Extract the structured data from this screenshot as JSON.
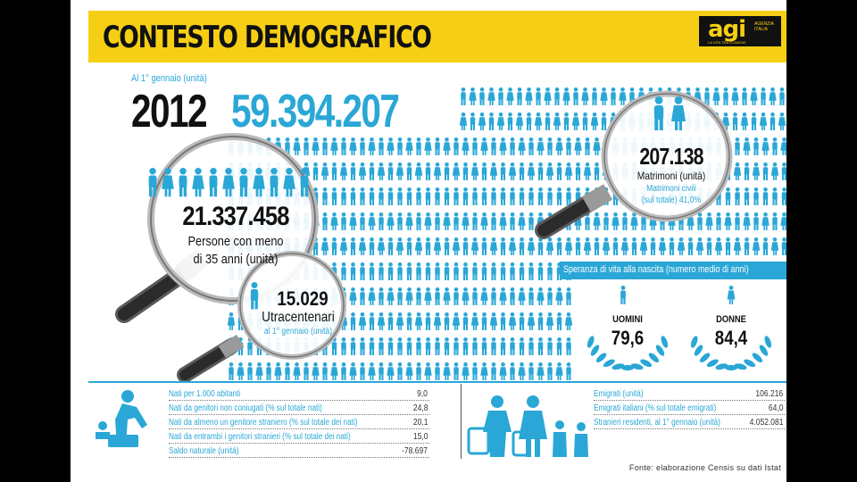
{
  "header": {
    "title": "CONTESTO DEMOGRAFICO",
    "logo": {
      "name": "agi",
      "tagline": "AGENZIA ITALIA",
      "subtag": "LA VITA TRA CI ANCHE"
    }
  },
  "population": {
    "date_label": "Al 1° gennaio (unità)",
    "year": "2012",
    "value": "59.394.207"
  },
  "under35": {
    "value": "21.337.458",
    "label_line1": "Persone con meno",
    "label_line2": "di 35 anni (unità)"
  },
  "centenarians": {
    "value": "15.029",
    "label": "Utracentenari",
    "sublabel": "al 1° gennaio (unità)"
  },
  "marriages": {
    "value": "207.138",
    "label": "Matrimoni (unità)",
    "civil_label": "Matrimoni civili",
    "civil_value": "(sul totale) 41,0%"
  },
  "life_expectancy": {
    "title": "Speranza di vita alla nascita (numero medio di anni)",
    "men_label": "UOMINI",
    "men_value": "79,6",
    "women_label": "DONNE",
    "women_value": "84,4"
  },
  "births_table": [
    {
      "label": "Nati per 1.000 abitanti",
      "value": "9,0"
    },
    {
      "label": "Nati da genitori non coniugati (% sul totale nati)",
      "value": "24,8"
    },
    {
      "label": "Nati da almeno un genitore straniero (% sul totale dei nati)",
      "value": "20,1"
    },
    {
      "label": "Nati da entrambi i genitori stranieri (% sul totale dei nati)",
      "value": "15,0"
    },
    {
      "label": "Saldo naturale (unità)",
      "value": "-78.697"
    }
  ],
  "migration_table": [
    {
      "label": "Emigrati (unità)",
      "value": "106.216"
    },
    {
      "label": "Emigrati italiani (% sul totale emigrati)",
      "value": "64,0"
    },
    {
      "label": "Stranieri residenti, al 1° gennaio (unità)",
      "value": "4.052.081"
    }
  ],
  "source": "Fonte: elaborazione Censis su dati Istat",
  "colors": {
    "accent": "#2aa7d6",
    "header": "#f6cf15",
    "text": "#111111"
  },
  "icons": [
    "person-icon",
    "magnifier-icon",
    "couple-icon",
    "laurel-wreath-icon",
    "parent-child-icon",
    "family-luggage-icon"
  ]
}
